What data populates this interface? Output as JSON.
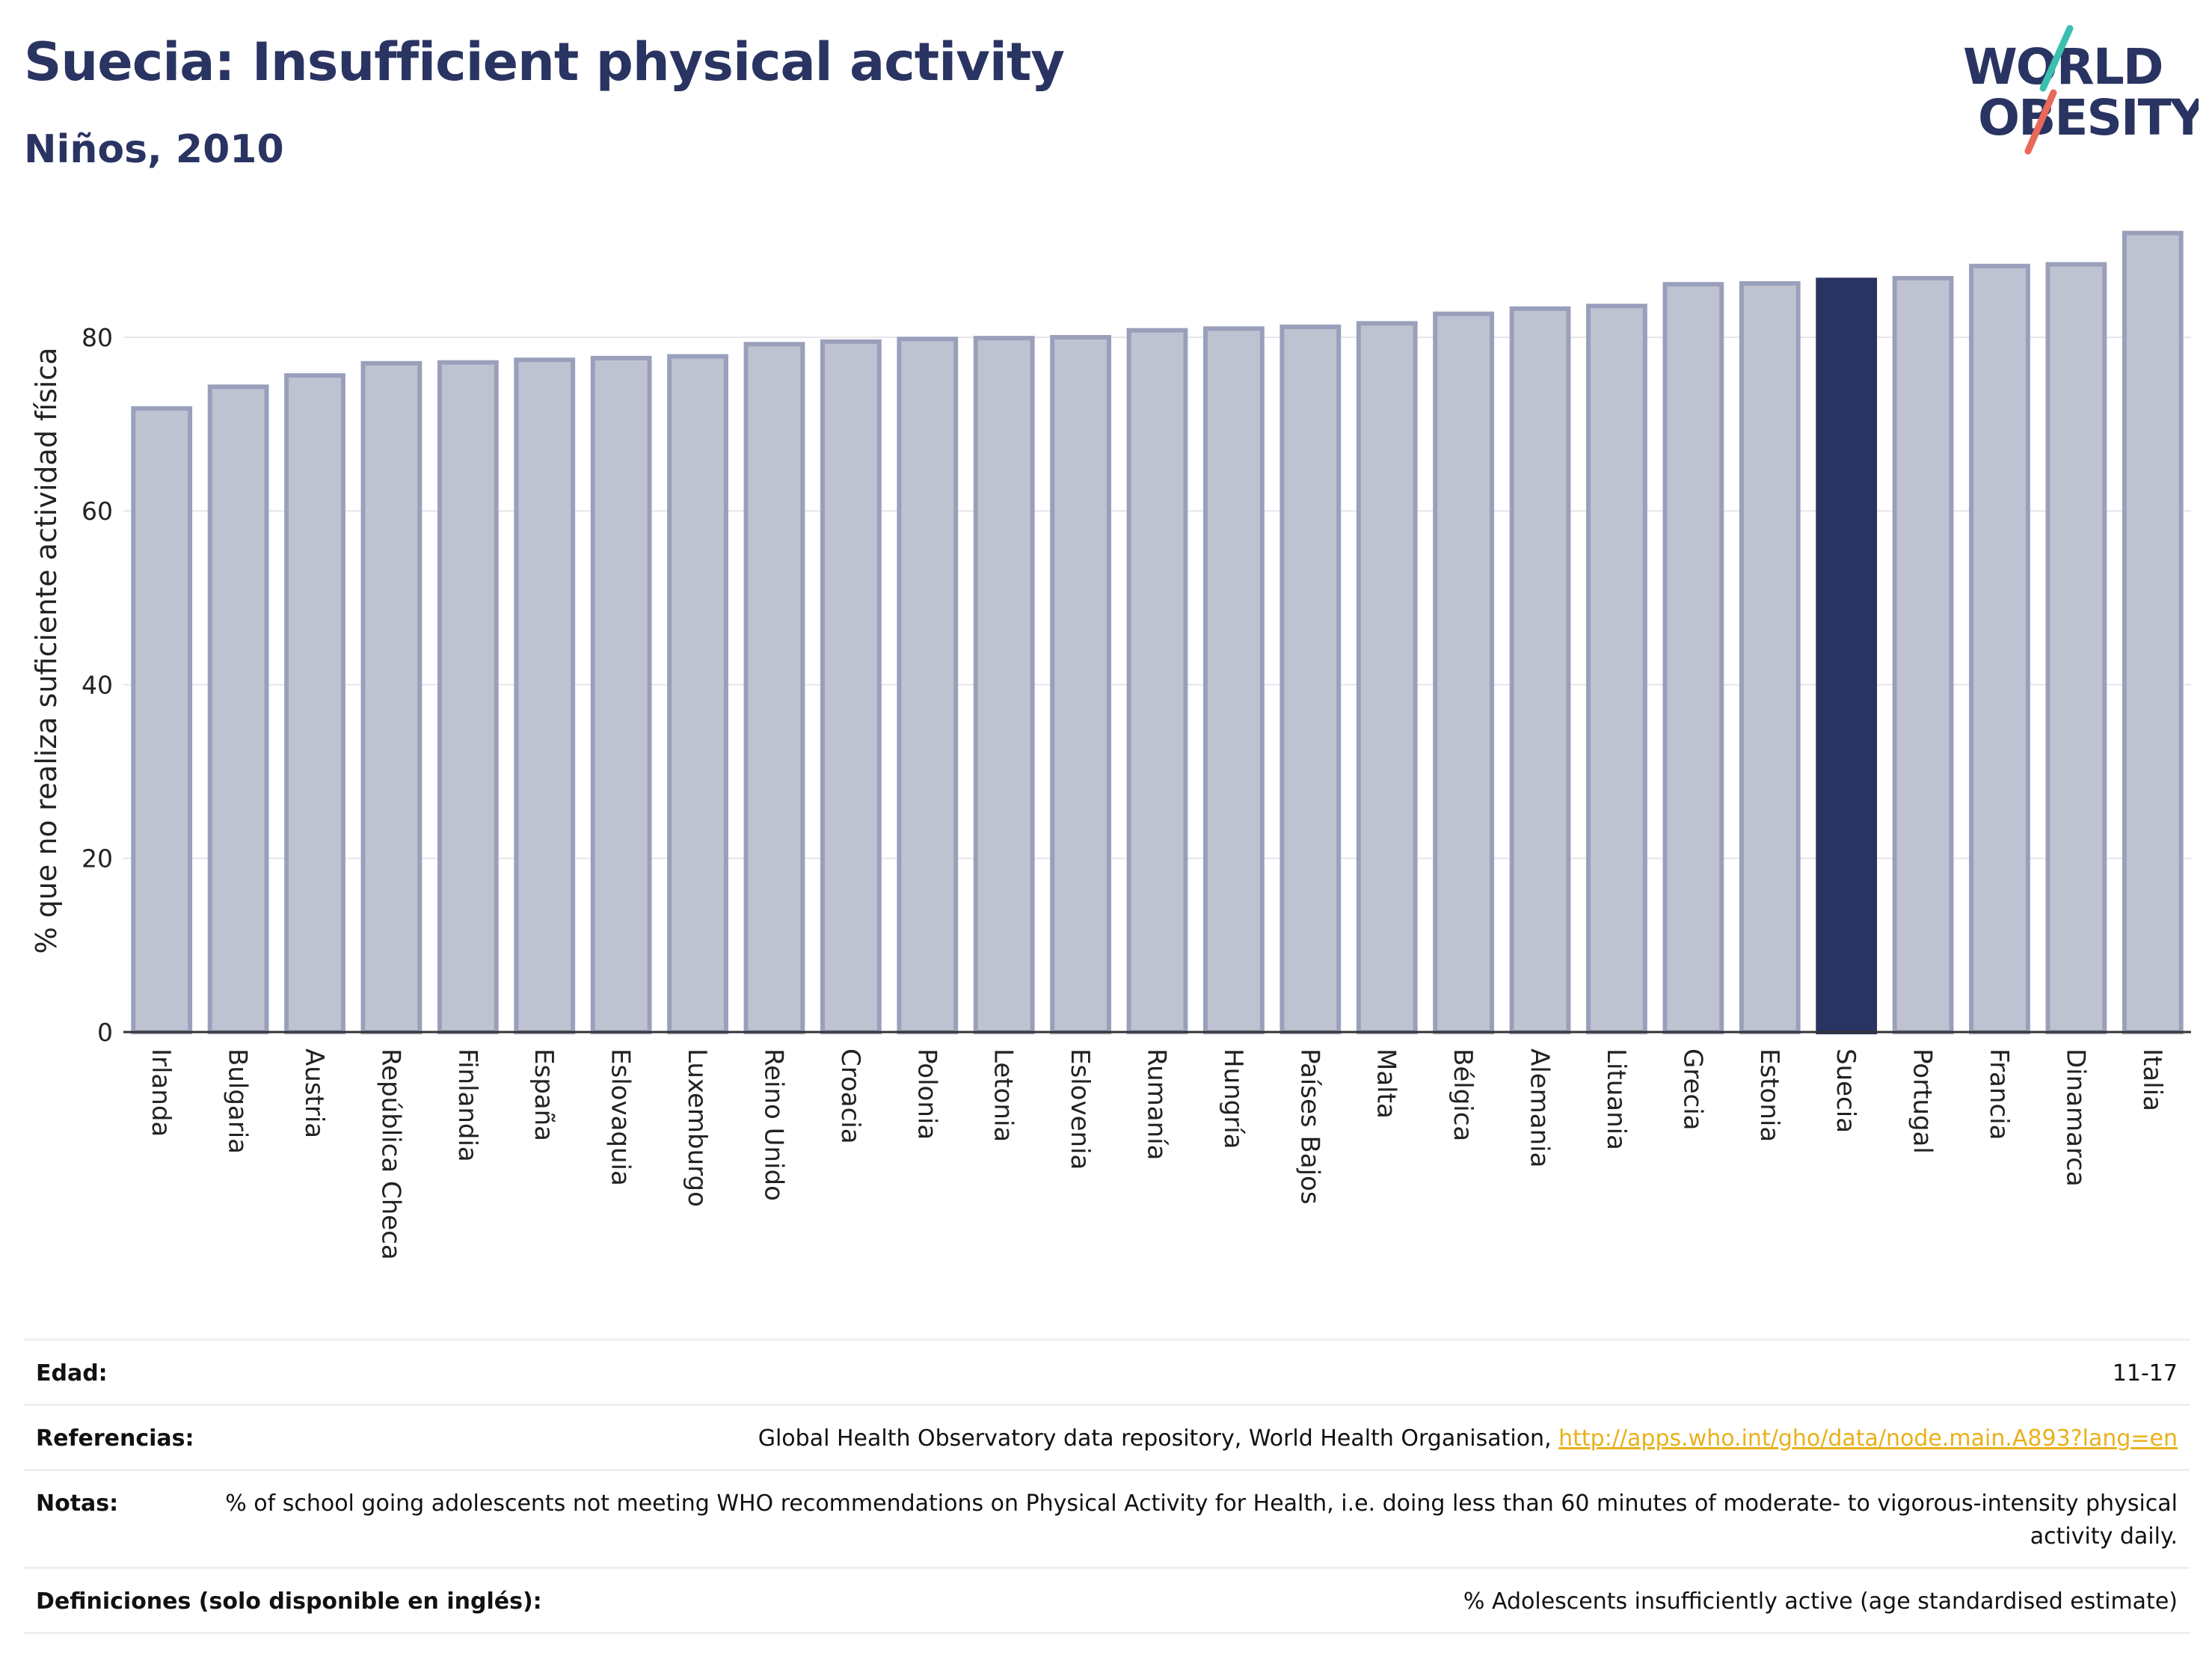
{
  "header": {
    "title": "Suecia: Insufficient physical activity",
    "subtitle": "Niños, 2010"
  },
  "logo": {
    "line1": "WORLD",
    "line2": "OBESITY",
    "accent_teal": "#3bbfb0",
    "accent_red": "#e8685a"
  },
  "colors": {
    "bar_default": "#bfc3d1",
    "bar_border": "#9aa0bb",
    "bar_highlight": "#2a3462",
    "title": "#2a3462",
    "link": "#e8b11a"
  },
  "chart_data": {
    "type": "bar",
    "ylabel": "% que no realiza suficiente actividad física",
    "xlabel": "",
    "ylim": [
      0,
      93
    ],
    "yticks": [
      0,
      20,
      40,
      60,
      80
    ],
    "grid": true,
    "highlight": "Suecia",
    "categories": [
      "Irlanda",
      "Bulgaria",
      "Austria",
      "República Checa",
      "Finlandia",
      "España",
      "Eslovaquia",
      "Luxemburgo",
      "Reino Unido",
      "Croacia",
      "Polonia",
      "Letonia",
      "Eslovenia",
      "Rumanía",
      "Hungría",
      "Países Bajos",
      "Malta",
      "Bélgica",
      "Alemania",
      "Lituania",
      "Grecia",
      "Estonia",
      "Suecia",
      "Portugal",
      "Francia",
      "Dinamarca",
      "Italia"
    ],
    "values": [
      71.8,
      74.3,
      75.6,
      77.0,
      77.1,
      77.4,
      77.6,
      77.8,
      79.2,
      79.5,
      79.8,
      79.9,
      80.0,
      80.8,
      81.0,
      81.2,
      81.6,
      82.7,
      83.3,
      83.6,
      86.1,
      86.2,
      86.6,
      86.8,
      88.2,
      88.4,
      92.0
    ]
  },
  "info": {
    "age_label": "Edad:",
    "age_value": "11-17",
    "refs_label": "Referencias:",
    "refs_text": "Global Health Observatory data repository, World Health Organisation, ",
    "refs_link": "http://apps.who.int/gho/data/node.main.A893?lang=en",
    "notes_label": "Notas:",
    "notes_value": "% of school going adolescents not meeting WHO recommendations on Physical Activity for Health, i.e. doing less than 60 minutes of moderate- to vigorous-intensity physical activity daily.",
    "defs_label": "Definiciones (solo disponible en inglés):",
    "defs_value": "% Adolescents insufficiently active (age standardised estimate)"
  }
}
